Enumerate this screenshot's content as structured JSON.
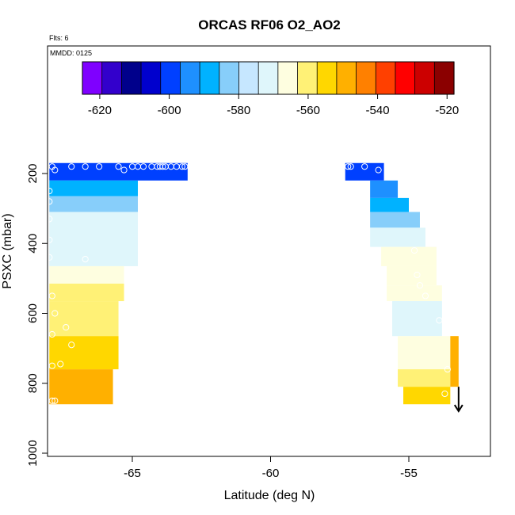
{
  "chart_data": {
    "type": "heatmap",
    "title": "ORCAS RF06 O2_AO2",
    "flts_label": "Flts: 6",
    "mmdd_label": "MMDD: 0125",
    "xlabel": "Latitude (deg N)",
    "ylabel": "PSXC (mbar)",
    "xlim": [
      -68.0,
      -52.0
    ],
    "ylim": [
      1000,
      100
    ],
    "y_reversed": true,
    "x_ticks": [
      -65,
      -60,
      -55
    ],
    "x_tick_labels": [
      "-65",
      "-60",
      "-55"
    ],
    "y_ticks": [
      200,
      400,
      600,
      800,
      1000
    ],
    "y_tick_labels": [
      "200",
      "400",
      "600",
      "800",
      "1000"
    ],
    "colorbar": {
      "min": -625,
      "max": -518,
      "ticks": [
        -620,
        -600,
        -580,
        -560,
        -540,
        -520
      ],
      "tick_labels": [
        "-620",
        "-600",
        "-580",
        "-560",
        "-540",
        "-520"
      ],
      "colors": [
        "#7f00ff",
        "#3300cc",
        "#00008b",
        "#0000cd",
        "#0040ff",
        "#1e90ff",
        "#00b2ff",
        "#87cefa",
        "#c6e7ff",
        "#dff6fb",
        "#fefee0",
        "#fff176",
        "#ffd700",
        "#ffb000",
        "#ff8000",
        "#ff4000",
        "#ff0000",
        "#cc0000",
        "#8b0000"
      ]
    },
    "heatmap_blocks": [
      {
        "lat": [
          -68.0,
          -63.0
        ],
        "p": [
          170,
          220
        ],
        "value": -600
      },
      {
        "lat": [
          -68.0,
          -64.8
        ],
        "p": [
          220,
          265
        ],
        "value": -590
      },
      {
        "lat": [
          -68.0,
          -64.8
        ],
        "p": [
          265,
          310
        ],
        "value": -580
      },
      {
        "lat": [
          -68.0,
          -64.8
        ],
        "p": [
          310,
          465
        ],
        "value": -573
      },
      {
        "lat": [
          -68.0,
          -65.3
        ],
        "p": [
          465,
          515
        ],
        "value": -567
      },
      {
        "lat": [
          -68.0,
          -65.3
        ],
        "p": [
          515,
          565
        ],
        "value": -563
      },
      {
        "lat": [
          -68.0,
          -65.5
        ],
        "p": [
          565,
          665
        ],
        "value": -558
      },
      {
        "lat": [
          -68.0,
          -65.5
        ],
        "p": [
          665,
          760
        ],
        "value": -553
      },
      {
        "lat": [
          -68.0,
          -65.7
        ],
        "p": [
          760,
          860
        ],
        "value": -550
      },
      {
        "lat": [
          -57.3,
          -55.9
        ],
        "p": [
          170,
          220
        ],
        "value": -600
      },
      {
        "lat": [
          -56.4,
          -55.4
        ],
        "p": [
          220,
          270
        ],
        "value": -592
      },
      {
        "lat": [
          -56.4,
          -55.0
        ],
        "p": [
          270,
          310
        ],
        "value": -588
      },
      {
        "lat": [
          -56.4,
          -54.6
        ],
        "p": [
          310,
          355
        ],
        "value": -580
      },
      {
        "lat": [
          -56.4,
          -54.4
        ],
        "p": [
          355,
          410
        ],
        "value": -573
      },
      {
        "lat": [
          -56.0,
          -54.0
        ],
        "p": [
          410,
          465
        ],
        "value": -567
      },
      {
        "lat": [
          -55.8,
          -54.0
        ],
        "p": [
          465,
          520
        ],
        "value": -566
      },
      {
        "lat": [
          -55.8,
          -53.8
        ],
        "p": [
          520,
          565
        ],
        "value": -568
      },
      {
        "lat": [
          -55.6,
          -53.8
        ],
        "p": [
          565,
          665
        ],
        "value": -570
      },
      {
        "lat": [
          -55.4,
          -53.5
        ],
        "p": [
          665,
          760
        ],
        "value": -566
      },
      {
        "lat": [
          -55.4,
          -53.5
        ],
        "p": [
          760,
          810
        ],
        "value": -560
      },
      {
        "lat": [
          -55.2,
          -53.5
        ],
        "p": [
          810,
          860
        ],
        "value": -552
      },
      {
        "lat": [
          -53.5,
          -53.2
        ],
        "p": [
          665,
          810
        ],
        "value": -550
      }
    ],
    "flight_points": [
      [
        -67.9,
        180
      ],
      [
        -67.8,
        190
      ],
      [
        -67.2,
        180
      ],
      [
        -66.7,
        180
      ],
      [
        -66.2,
        180
      ],
      [
        -65.5,
        180
      ],
      [
        -65.3,
        190
      ],
      [
        -65.0,
        180
      ],
      [
        -64.8,
        180
      ],
      [
        -64.6,
        180
      ],
      [
        -64.3,
        180
      ],
      [
        -64.1,
        180
      ],
      [
        -64.0,
        180
      ],
      [
        -63.9,
        180
      ],
      [
        -63.8,
        180
      ],
      [
        -63.6,
        180
      ],
      [
        -63.4,
        180
      ],
      [
        -63.2,
        180
      ],
      [
        -63.1,
        180
      ],
      [
        -68.0,
        250
      ],
      [
        -68.0,
        280
      ],
      [
        -68.0,
        330
      ],
      [
        -68.0,
        390
      ],
      [
        -68.0,
        440
      ],
      [
        -66.7,
        445
      ],
      [
        -67.9,
        550
      ],
      [
        -67.8,
        600
      ],
      [
        -67.9,
        660
      ],
      [
        -67.4,
        640
      ],
      [
        -67.2,
        690
      ],
      [
        -67.9,
        750
      ],
      [
        -67.6,
        745
      ],
      [
        -67.8,
        850
      ],
      [
        -67.9,
        850
      ],
      [
        -57.2,
        180
      ],
      [
        -57.1,
        180
      ],
      [
        -56.6,
        180
      ],
      [
        -56.1,
        190
      ],
      [
        -54.8,
        420
      ],
      [
        -54.7,
        490
      ],
      [
        -54.6,
        520
      ],
      [
        -54.4,
        550
      ],
      [
        -53.9,
        620
      ],
      [
        -53.6,
        760
      ],
      [
        -53.7,
        830
      ]
    ],
    "arrow": {
      "lat": -53.2,
      "p_from": 810,
      "p_to": 880
    }
  }
}
